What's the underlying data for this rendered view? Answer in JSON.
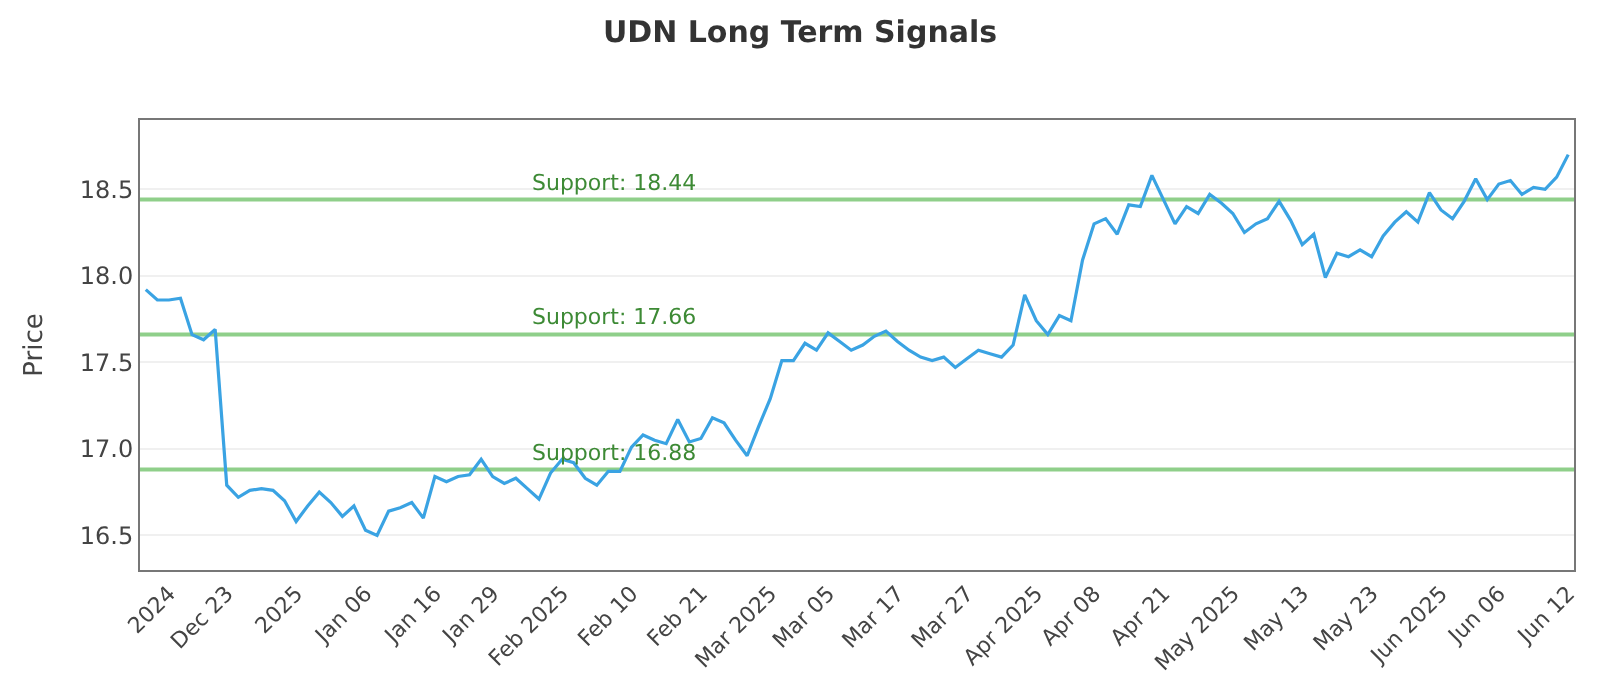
{
  "chart_data": {
    "type": "line",
    "title": "UDN Long Term Signals",
    "ylabel": "Price",
    "categories": [
      null,
      null,
      "2024",
      null,
      null,
      null,
      null,
      "Dec 23",
      null,
      null,
      null,
      null,
      null,
      "2025",
      null,
      null,
      null,
      null,
      null,
      "Jan 06",
      null,
      null,
      null,
      null,
      null,
      "Jan 16",
      null,
      null,
      null,
      null,
      "Jan 29",
      null,
      null,
      null,
      null,
      null,
      "Feb 2025",
      null,
      null,
      null,
      null,
      null,
      "Feb 10",
      null,
      null,
      null,
      null,
      null,
      "Feb 21",
      null,
      null,
      null,
      null,
      null,
      "Mar 2025",
      null,
      null,
      null,
      null,
      "Mar 05",
      null,
      null,
      null,
      null,
      null,
      "Mar 17",
      null,
      null,
      null,
      null,
      null,
      "Mar 27",
      null,
      null,
      null,
      null,
      null,
      "Apr 2025",
      null,
      null,
      null,
      null,
      "Apr 08",
      null,
      null,
      null,
      null,
      null,
      "Apr 21",
      null,
      null,
      null,
      null,
      null,
      "May 2025",
      null,
      null,
      null,
      null,
      null,
      "May 13",
      null,
      null,
      null,
      null,
      null,
      "May 23",
      null,
      null,
      null,
      null,
      null,
      "Jun 2025",
      null,
      null,
      null,
      null,
      "Jun 06",
      null,
      null,
      null,
      null,
      null,
      "Jun 12"
    ],
    "series": [
      {
        "color": "#3aa3e3",
        "values": [
          17.92,
          17.86,
          17.86,
          17.87,
          17.66,
          17.63,
          17.69,
          16.79,
          16.72,
          16.76,
          16.77,
          16.76,
          16.7,
          16.58,
          16.67,
          16.75,
          16.69,
          16.61,
          16.67,
          16.53,
          16.5,
          16.64,
          16.66,
          16.69,
          16.6,
          16.84,
          16.81,
          16.84,
          16.85,
          16.94,
          16.84,
          16.8,
          16.83,
          16.77,
          16.71,
          16.86,
          16.94,
          16.92,
          16.83,
          16.79,
          16.87,
          16.87,
          17.01,
          17.08,
          17.05,
          17.03,
          17.17,
          17.04,
          17.06,
          17.18,
          17.15,
          17.05,
          16.96,
          17.13,
          17.29,
          17.51,
          17.51,
          17.61,
          17.57,
          17.67,
          17.62,
          17.57,
          17.6,
          17.65,
          17.68,
          17.62,
          17.57,
          17.53,
          17.51,
          17.53,
          17.47,
          17.52,
          17.57,
          17.55,
          17.53,
          17.6,
          17.89,
          17.74,
          17.66,
          17.77,
          17.74,
          18.09,
          18.3,
          18.33,
          18.24,
          18.41,
          18.4,
          18.58,
          18.44,
          18.3,
          18.4,
          18.36,
          18.47,
          18.42,
          18.36,
          18.25,
          18.3,
          18.33,
          18.43,
          18.32,
          18.18,
          18.24,
          17.99,
          18.13,
          18.11,
          18.15,
          18.11,
          18.23,
          18.31,
          18.37,
          18.31,
          18.48,
          18.38,
          18.33,
          18.43,
          18.56,
          18.44,
          18.53,
          18.55,
          18.47,
          18.51,
          18.5,
          18.57,
          18.7
        ]
      }
    ],
    "ylim": [
      16.3,
      18.9
    ],
    "yticks": [
      16.5,
      {
        "value": 17,
        "label": "17.0"
      },
      17.5,
      {
        "value": 18,
        "label": "18.0"
      },
      18.5
    ],
    "grid": "y",
    "marker": "none",
    "line_style": "solid",
    "ref_lines": [
      {
        "axis": "y",
        "value": 18.44,
        "label": "Support: 18.44",
        "color": "#8fcf8a"
      },
      {
        "axis": "y",
        "value": 17.66,
        "label": "Support: 17.66",
        "color": "#8fcf8a"
      },
      {
        "axis": "y",
        "value": 16.88,
        "label": "Support: 16.88",
        "color": "#8fcf8a"
      }
    ]
  }
}
